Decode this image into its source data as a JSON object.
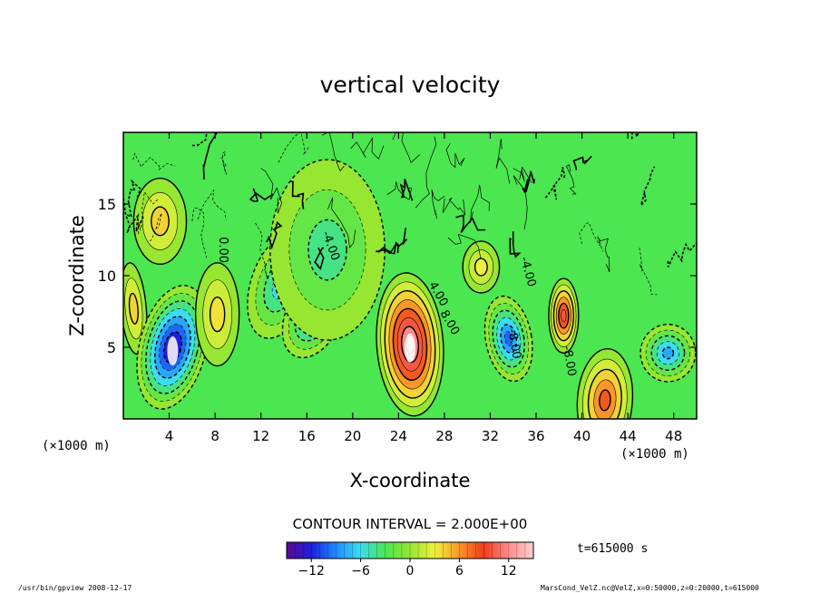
{
  "chart_data": {
    "type": "heatmap",
    "title": "vertical velocity",
    "xlabel": "X-coordinate",
    "ylabel": "Z-coordinate",
    "x_unit": "(×1000 m)",
    "z_unit": "(×1000 m)",
    "xlim": [
      0,
      50
    ],
    "zlim": [
      0,
      20
    ],
    "x_ticks": [
      "4",
      "8",
      "12",
      "16",
      "20",
      "24",
      "28",
      "32",
      "36",
      "40",
      "44",
      "48"
    ],
    "z_ticks": [
      "5",
      "10",
      "15"
    ],
    "contour_interval_text": "CONTOUR INTERVAL = 2.000E+00",
    "colorbar": {
      "min": -15,
      "max": 15,
      "ticks": [
        "-12",
        "-6",
        "0",
        "6",
        "12"
      ],
      "colors": [
        "#5a0a8c",
        "#1e1edc",
        "#1e8cff",
        "#3cdcf0",
        "#4be650",
        "#96e632",
        "#f0f03c",
        "#fa9628",
        "#f03c1e",
        "#ff8c8c",
        "#ffd2d2"
      ]
    },
    "features": [
      {
        "x": 0.9,
        "z": 7.7,
        "w": 4.0
      },
      {
        "x": 4.3,
        "z": 5.0,
        "w": -14.0
      },
      {
        "x": 8.2,
        "z": 7.3,
        "w": 3.5
      },
      {
        "x": 13.7,
        "z": 9.3,
        "w": -6.0
      },
      {
        "x": 16.6,
        "z": 7.2,
        "w": -8.0
      },
      {
        "x": 17.8,
        "z": 11.8,
        "w": -4.0
      },
      {
        "x": 25.0,
        "z": 5.2,
        "w": 14.0
      },
      {
        "x": 33.6,
        "z": 5.6,
        "w": -10.0
      },
      {
        "x": 38.4,
        "z": 7.2,
        "w": 10.0
      },
      {
        "x": 42.0,
        "z": 1.3,
        "w": 8.0
      },
      {
        "x": 47.5,
        "z": 4.6,
        "w": -8.0
      },
      {
        "x": 3.2,
        "z": 13.8,
        "w": 4.0
      },
      {
        "x": 31.2,
        "z": 10.6,
        "w": 3.0
      }
    ],
    "contour_labels": [
      "4.00",
      "8.00",
      "-4.00",
      "-8.00",
      "0.00",
      "-4.00",
      "-8.00"
    ],
    "info_time": "t=615000 s"
  },
  "footer": {
    "left": "/usr/bin/gpview   2008-12-17",
    "right": "MarsCond_VelZ.nc@VelZ,x=0:50000,z=0:20000,t=615000"
  }
}
